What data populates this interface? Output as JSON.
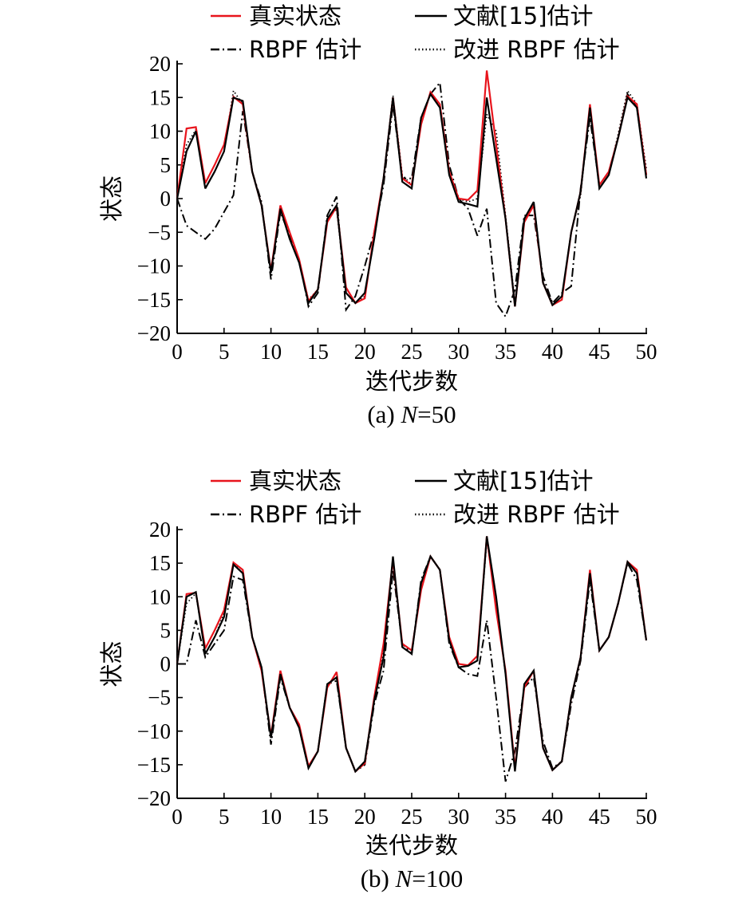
{
  "chart_data": [
    {
      "type": "line",
      "caption_prefix": "(a) ",
      "caption_var": "N",
      "caption_suffix": "=50",
      "xlabel": "迭代步数",
      "ylabel": "状态",
      "xlim": [
        0,
        50
      ],
      "ylim": [
        -20,
        20
      ],
      "xticks": [
        0,
        5,
        10,
        15,
        20,
        25,
        30,
        35,
        40,
        45,
        50
      ],
      "yticks": [
        20,
        15,
        10,
        5,
        0,
        -5,
        -10,
        -15,
        -20
      ],
      "ytick_labels": [
        "20",
        "15",
        "10",
        "5",
        "0",
        "−5",
        "−10",
        "−15",
        "−20"
      ],
      "grid": false,
      "legend": "top",
      "series": [
        {
          "name": "真实状态",
          "style": "solid-red",
          "color": "#e8141c",
          "values": [
            0,
            10.4,
            10.6,
            2.3,
            5,
            8,
            15.1,
            14,
            4,
            -1,
            -10.7,
            -1,
            -5,
            -9,
            -15.2,
            -13.5,
            -3.5,
            -1.2,
            -13.2,
            -15.5,
            -14.8,
            -5,
            3,
            15,
            3,
            2,
            11,
            15.8,
            14,
            4,
            0,
            -0.2,
            1.2,
            19,
            8,
            -3,
            -16,
            -3.5,
            -1,
            -12.5,
            -15.8,
            -15,
            -5,
            1,
            14,
            2,
            4,
            9,
            15.2,
            14,
            3.5
          ]
        },
        {
          "name": "文献[15]估计",
          "style": "solid-black",
          "color": "#000000",
          "values": [
            0,
            7,
            10,
            1.5,
            4,
            7,
            15,
            14.5,
            4,
            -1,
            -11,
            -1.5,
            -6,
            -9.5,
            -15.5,
            -13.5,
            -3,
            -1,
            -14,
            -15.5,
            -14,
            -6,
            3,
            15,
            2.5,
            1.5,
            12,
            15.5,
            13.5,
            3.5,
            -0.5,
            -0.8,
            -1.2,
            15,
            6,
            -3,
            -16,
            -3,
            -0.5,
            -12.5,
            -15.8,
            -14.5,
            -5,
            1,
            13.5,
            1.5,
            3.5,
            9,
            15,
            13.5,
            3
          ]
        },
        {
          "name": "RBPF 估计",
          "style": "dash-dot",
          "color": "#000000",
          "values": [
            0,
            -4,
            -5,
            -6,
            -4.5,
            -2,
            0.5,
            13,
            4,
            -0.5,
            -12,
            -2,
            -5.5,
            -9,
            -16,
            -14,
            -2.5,
            0.3,
            -16.5,
            -14.5,
            -10,
            -5,
            2,
            14,
            3,
            3,
            12,
            15.5,
            17.2,
            5,
            0,
            -1.5,
            -5.5,
            -1.5,
            -15.5,
            -17.5,
            -13.5,
            -2.5,
            -2.5,
            -11.5,
            -15.5,
            -14,
            -13,
            1.5,
            12,
            2,
            4,
            9,
            15.5,
            13.5,
            3.5
          ]
        },
        {
          "name": "改进 RBPF 估计",
          "style": "dotted",
          "color": "#000000",
          "values": [
            0,
            8,
            10.2,
            1.5,
            4,
            7,
            16,
            14,
            4,
            -1,
            -11,
            -1.5,
            -6,
            -9.5,
            -15,
            -13.5,
            -3,
            -1.5,
            -14,
            -15.5,
            -14.5,
            -5.5,
            3,
            15.3,
            3.5,
            2,
            12,
            15.5,
            14,
            4,
            0,
            -0.5,
            0,
            12.5,
            10,
            -2.5,
            -15.5,
            -3,
            -0.5,
            -12.5,
            -15.5,
            -15,
            -5,
            0.5,
            13.5,
            1.5,
            3.5,
            9.5,
            16,
            14,
            4.5
          ]
        }
      ]
    },
    {
      "type": "line",
      "caption_prefix": "(b) ",
      "caption_var": "N",
      "caption_suffix": "=100",
      "xlabel": "迭代步数",
      "ylabel": "状态",
      "xlim": [
        0,
        50
      ],
      "ylim": [
        -20,
        20
      ],
      "xticks": [
        0,
        5,
        10,
        15,
        20,
        25,
        30,
        35,
        40,
        45,
        50
      ],
      "yticks": [
        20,
        15,
        10,
        5,
        0,
        -5,
        -10,
        -15,
        -20
      ],
      "ytick_labels": [
        "20",
        "15",
        "10",
        "5",
        "0",
        "−5",
        "−10",
        "−15",
        "−20"
      ],
      "grid": false,
      "legend": "top",
      "series": [
        {
          "name": "真实状态",
          "style": "solid-red",
          "color": "#e8141c",
          "values": [
            0,
            10.4,
            10.6,
            2.3,
            5,
            8,
            15.1,
            14,
            4,
            -1,
            -10.7,
            -1,
            -6.5,
            -9,
            -15.2,
            -13,
            -3.5,
            -1.2,
            -12.5,
            -16,
            -14.8,
            -5,
            3,
            15.5,
            3,
            2,
            11,
            16,
            14,
            4,
            0,
            -0.2,
            1.2,
            19,
            8,
            -1,
            -15.5,
            -3.5,
            -1,
            -12.5,
            -15.8,
            -14.5,
            -5,
            1,
            14,
            2,
            4,
            9,
            15.2,
            14,
            3.5
          ]
        },
        {
          "name": "文献[15]估计",
          "style": "solid-black",
          "color": "#000000",
          "values": [
            0,
            10,
            10.7,
            1.5,
            4,
            7,
            14.8,
            13.5,
            4,
            -0.5,
            -11,
            -1.5,
            -6.5,
            -9.5,
            -15.5,
            -13,
            -3,
            -2,
            -12.5,
            -16,
            -14.5,
            -5.5,
            1,
            16,
            2.5,
            1.5,
            12,
            16,
            14,
            3.5,
            -0.5,
            -0.3,
            0.5,
            19,
            10,
            -1.5,
            -16,
            -3,
            -1,
            -12.5,
            -15.8,
            -14.5,
            -5,
            1,
            13.5,
            2,
            4,
            9,
            15.2,
            13.5,
            3.5
          ]
        },
        {
          "name": "RBPF 估计",
          "style": "dash-dot",
          "color": "#000000",
          "values": [
            0,
            0,
            6.5,
            1,
            3,
            5,
            13,
            12.5,
            4,
            -0.5,
            -12,
            -2,
            -6.5,
            -9.5,
            -15.5,
            -13,
            -3,
            -2.5,
            -12.5,
            -16,
            -15,
            -6,
            -1,
            14,
            3,
            1.5,
            12.5,
            16,
            14,
            3,
            -0.5,
            -1.5,
            -1.8,
            6.5,
            -5,
            -17.5,
            -13,
            -3.5,
            -2,
            -11.5,
            -15.5,
            -14.5,
            -6,
            0.5,
            12.5,
            2,
            4,
            9,
            15,
            12.5,
            3.5
          ]
        },
        {
          "name": "改进 RBPF 估计",
          "style": "dotted",
          "color": "#000000",
          "values": [
            0,
            9,
            10.5,
            1.5,
            4,
            7.5,
            15,
            13.5,
            4,
            -0.5,
            -11,
            -1.5,
            -6.5,
            -9.5,
            -15.5,
            -13,
            -3,
            -2,
            -12.5,
            -16,
            -14.5,
            -5.5,
            2,
            15.5,
            2.5,
            1.5,
            12,
            16,
            14,
            3.5,
            -0.5,
            -0.3,
            0.5,
            18.5,
            9,
            -1.5,
            -15.5,
            -3,
            -1,
            -12.5,
            -15.8,
            -14.5,
            -5,
            1,
            13.5,
            2,
            4,
            9,
            15.2,
            13.5,
            3.5
          ]
        }
      ]
    }
  ]
}
